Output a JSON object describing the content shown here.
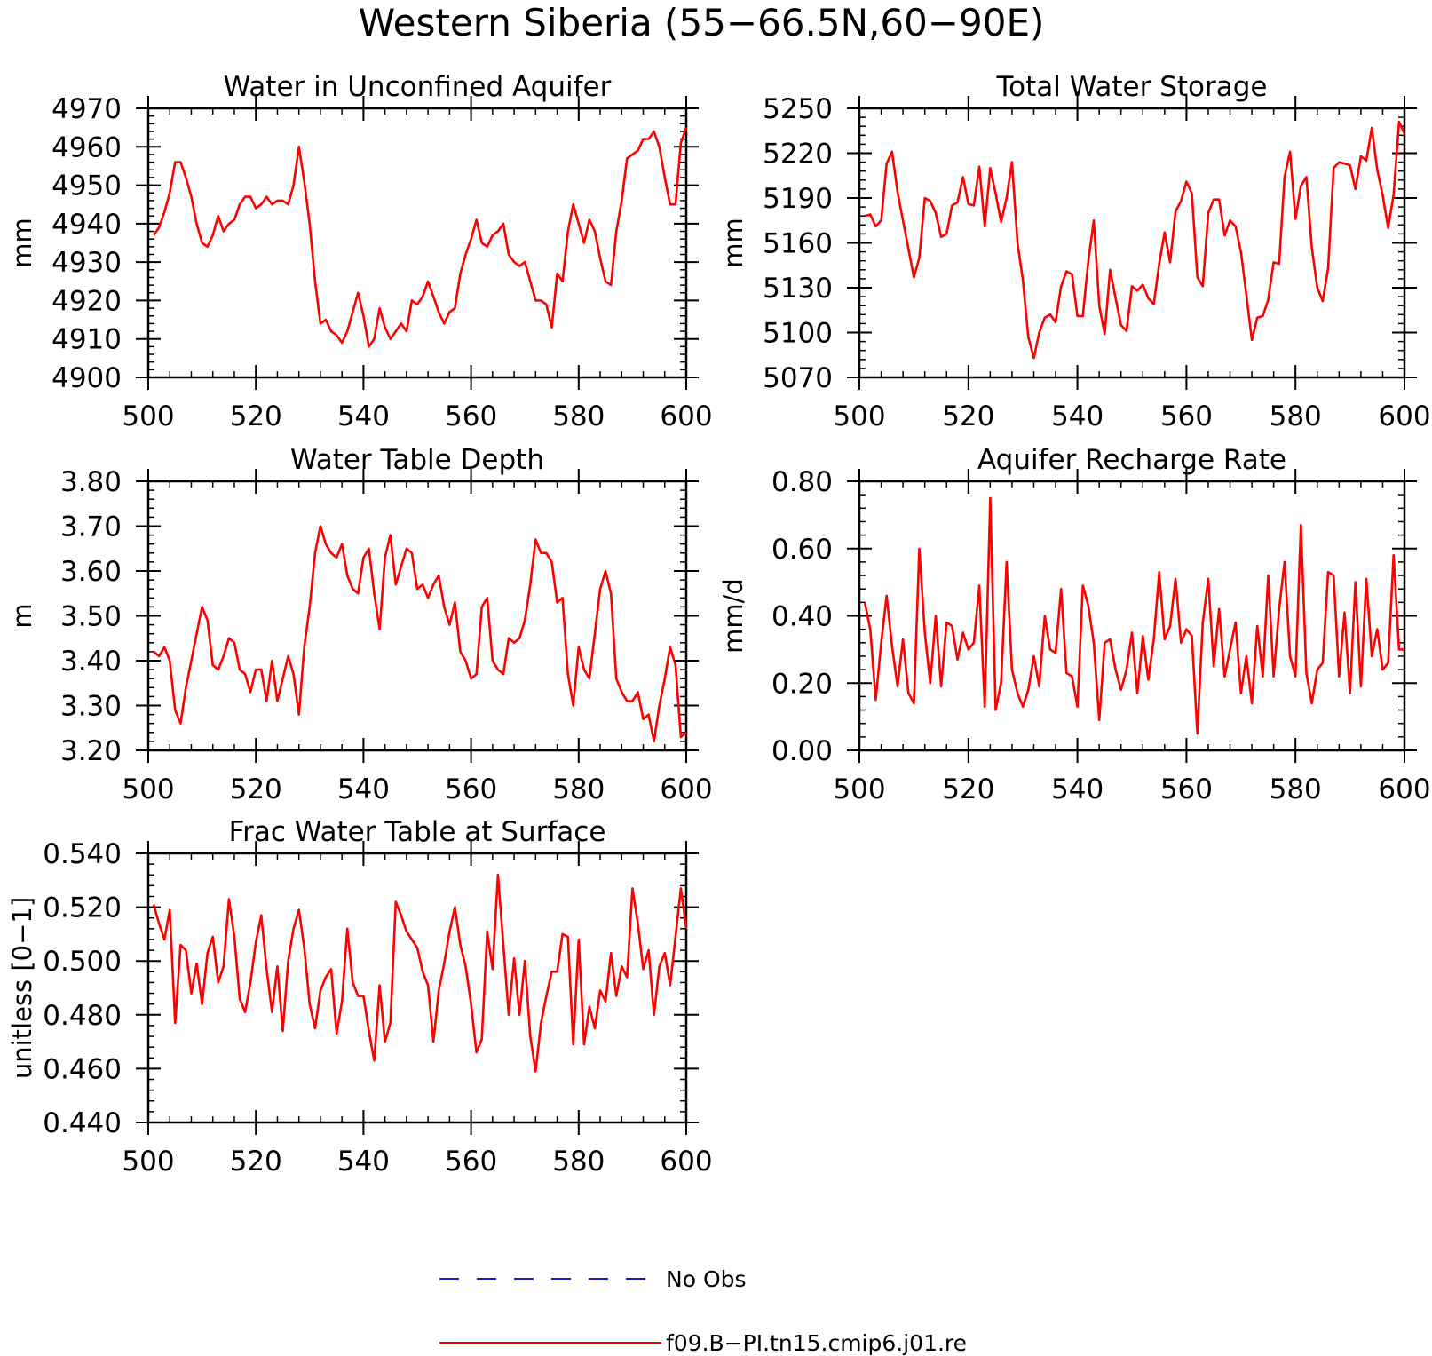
{
  "figure": {
    "title": "Western Siberia (55−66.5N,60−90E)",
    "legend": [
      {
        "label": "No Obs",
        "color": "#1f1fd1",
        "dash": true
      },
      {
        "label": "f09.B−PI.tn15.cmip6.j01.re",
        "color": "#ff0000",
        "dash": false
      }
    ]
  },
  "chart_data": [
    {
      "type": "line",
      "title": "Water in Unconfined Aquifer",
      "ylabel": "mm",
      "xlim": [
        500,
        600
      ],
      "ylim": [
        4900,
        4970
      ],
      "xticks": [
        500,
        520,
        540,
        560,
        580,
        600
      ],
      "xtick_labels": [
        "500",
        "520",
        "540",
        "560",
        "580",
        "600"
      ],
      "yticks": [
        4900,
        4910,
        4920,
        4930,
        4940,
        4950,
        4960,
        4970
      ],
      "ytick_labels": [
        "4900",
        "4910",
        "4920",
        "4930",
        "4940",
        "4950",
        "4960",
        "4970"
      ],
      "series": [
        {
          "color": "#ff0000",
          "x_start": 501,
          "values": [
            4937,
            4939,
            4943,
            4948,
            4956,
            4956,
            4952,
            4947,
            4940,
            4935,
            4934,
            4937,
            4942,
            4938,
            4940,
            4941,
            4945,
            4947,
            4947,
            4944,
            4945,
            4947,
            4945,
            4946,
            4946,
            4945,
            4950,
            4960,
            4951,
            4940,
            4925,
            4914,
            4915,
            4912,
            4911,
            4909,
            4912,
            4917,
            4922,
            4916,
            4908,
            4910,
            4918,
            4913,
            4910,
            4912,
            4914,
            4912,
            4920,
            4919,
            4921,
            4925,
            4921,
            4917,
            4914,
            4917,
            4918,
            4927,
            4932,
            4936,
            4941,
            4935,
            4934,
            4937,
            4938,
            4940,
            4932,
            4930,
            4929,
            4930,
            4925,
            4920,
            4920,
            4919,
            4913,
            4927,
            4925,
            4938,
            4945,
            4940,
            4935,
            4941,
            4938,
            4931,
            4925,
            4924,
            4938,
            4946,
            4957,
            4958,
            4959,
            4962,
            4962,
            4964,
            4960,
            4952,
            4945,
            4945,
            4961,
            4965
          ]
        }
      ]
    },
    {
      "type": "line",
      "title": "Total Water Storage",
      "ylabel": "mm",
      "xlim": [
        500,
        600
      ],
      "ylim": [
        5070,
        5250
      ],
      "xticks": [
        500,
        520,
        540,
        560,
        580,
        600
      ],
      "xtick_labels": [
        "500",
        "520",
        "540",
        "560",
        "580",
        "600"
      ],
      "yticks": [
        5070,
        5100,
        5130,
        5160,
        5190,
        5220,
        5250
      ],
      "ytick_labels": [
        "5070",
        "5100",
        "5130",
        "5160",
        "5190",
        "5220",
        "5250"
      ],
      "series": [
        {
          "color": "#ff0000",
          "x_start": 501,
          "values": [
            5178,
            5179,
            5171,
            5175,
            5213,
            5221,
            5194,
            5175,
            5156,
            5137,
            5150,
            5190,
            5188,
            5180,
            5164,
            5166,
            5185,
            5187,
            5204,
            5186,
            5185,
            5211,
            5171,
            5210,
            5193,
            5174,
            5190,
            5214,
            5160,
            5135,
            5097,
            5083,
            5100,
            5110,
            5112,
            5107,
            5131,
            5141,
            5139,
            5111,
            5111,
            5148,
            5175,
            5118,
            5099,
            5142,
            5123,
            5105,
            5101,
            5131,
            5128,
            5132,
            5123,
            5119,
            5146,
            5167,
            5147,
            5181,
            5188,
            5201,
            5193,
            5137,
            5131,
            5180,
            5189,
            5189,
            5165,
            5175,
            5171,
            5154,
            5125,
            5095,
            5110,
            5111,
            5122,
            5147,
            5146,
            5204,
            5221,
            5176,
            5198,
            5204,
            5157,
            5130,
            5121,
            5143,
            5210,
            5214,
            5213,
            5212,
            5196,
            5218,
            5215,
            5237,
            5209,
            5192,
            5170,
            5192,
            5241,
            5233
          ]
        }
      ]
    },
    {
      "type": "line",
      "title": "Water Table Depth",
      "ylabel": "m",
      "xlim": [
        500,
        600
      ],
      "ylim": [
        3.2,
        3.8
      ],
      "xticks": [
        500,
        520,
        540,
        560,
        580,
        600
      ],
      "xtick_labels": [
        "500",
        "520",
        "540",
        "560",
        "580",
        "600"
      ],
      "yticks": [
        3.2,
        3.3,
        3.4,
        3.5,
        3.6,
        3.7,
        3.8
      ],
      "ytick_labels": [
        "3.20",
        "3.30",
        "3.40",
        "3.50",
        "3.60",
        "3.70",
        "3.80"
      ],
      "series": [
        {
          "color": "#ff0000",
          "x_start": 501,
          "values": [
            3.42,
            3.41,
            3.43,
            3.4,
            3.29,
            3.26,
            3.34,
            3.4,
            3.46,
            3.52,
            3.49,
            3.39,
            3.38,
            3.41,
            3.45,
            3.44,
            3.38,
            3.37,
            3.33,
            3.38,
            3.38,
            3.31,
            3.4,
            3.31,
            3.36,
            3.41,
            3.37,
            3.28,
            3.43,
            3.52,
            3.64,
            3.7,
            3.66,
            3.64,
            3.63,
            3.66,
            3.59,
            3.56,
            3.55,
            3.63,
            3.65,
            3.55,
            3.47,
            3.63,
            3.68,
            3.57,
            3.61,
            3.65,
            3.64,
            3.56,
            3.57,
            3.54,
            3.57,
            3.59,
            3.52,
            3.48,
            3.53,
            3.42,
            3.4,
            3.36,
            3.37,
            3.52,
            3.54,
            3.4,
            3.38,
            3.37,
            3.45,
            3.44,
            3.45,
            3.49,
            3.57,
            3.67,
            3.64,
            3.64,
            3.62,
            3.53,
            3.54,
            3.37,
            3.3,
            3.43,
            3.38,
            3.36,
            3.46,
            3.56,
            3.6,
            3.55,
            3.36,
            3.33,
            3.31,
            3.31,
            3.33,
            3.27,
            3.28,
            3.22,
            3.3,
            3.36,
            3.43,
            3.39,
            3.23,
            3.24
          ]
        }
      ]
    },
    {
      "type": "line",
      "title": "Aquifer Recharge Rate",
      "ylabel": "mm/d",
      "xlim": [
        500,
        600
      ],
      "ylim": [
        0,
        0.8
      ],
      "xticks": [
        500,
        520,
        540,
        560,
        580,
        600
      ],
      "xtick_labels": [
        "500",
        "520",
        "540",
        "560",
        "580",
        "600"
      ],
      "yticks": [
        0,
        0.2,
        0.4,
        0.6,
        0.8
      ],
      "ytick_labels": [
        "0.00",
        "0.20",
        "0.40",
        "0.60",
        "0.80"
      ],
      "series": [
        {
          "color": "#ff0000",
          "x_start": 501,
          "values": [
            0.44,
            0.36,
            0.15,
            0.32,
            0.46,
            0.31,
            0.19,
            0.33,
            0.17,
            0.14,
            0.6,
            0.35,
            0.2,
            0.4,
            0.19,
            0.38,
            0.37,
            0.27,
            0.35,
            0.3,
            0.32,
            0.49,
            0.13,
            0.75,
            0.12,
            0.2,
            0.56,
            0.24,
            0.17,
            0.13,
            0.18,
            0.28,
            0.19,
            0.4,
            0.3,
            0.29,
            0.48,
            0.23,
            0.22,
            0.13,
            0.49,
            0.43,
            0.32,
            0.09,
            0.32,
            0.33,
            0.24,
            0.18,
            0.24,
            0.35,
            0.17,
            0.34,
            0.21,
            0.33,
            0.53,
            0.33,
            0.37,
            0.51,
            0.32,
            0.36,
            0.34,
            0.05,
            0.38,
            0.51,
            0.25,
            0.42,
            0.22,
            0.3,
            0.38,
            0.17,
            0.28,
            0.14,
            0.37,
            0.22,
            0.52,
            0.22,
            0.42,
            0.56,
            0.28,
            0.22,
            0.67,
            0.23,
            0.14,
            0.24,
            0.26,
            0.53,
            0.52,
            0.22,
            0.41,
            0.17,
            0.5,
            0.19,
            0.51,
            0.28,
            0.36,
            0.24,
            0.26,
            0.58,
            0.3,
            0.3
          ]
        }
      ]
    },
    {
      "type": "line",
      "title": "Frac Water Table at Surface",
      "ylabel": "unitless [0−1]",
      "xlim": [
        500,
        600
      ],
      "ylim": [
        0.44,
        0.54
      ],
      "xticks": [
        500,
        520,
        540,
        560,
        580,
        600
      ],
      "xtick_labels": [
        "500",
        "520",
        "540",
        "560",
        "580",
        "600"
      ],
      "yticks": [
        0.44,
        0.46,
        0.48,
        0.5,
        0.52,
        0.54
      ],
      "ytick_labels": [
        "0.440",
        "0.460",
        "0.480",
        "0.500",
        "0.520",
        "0.540"
      ],
      "series": [
        {
          "color": "#ff0000",
          "x_start": 501,
          "values": [
            0.521,
            0.514,
            0.508,
            0.519,
            0.477,
            0.506,
            0.504,
            0.488,
            0.499,
            0.484,
            0.503,
            0.509,
            0.492,
            0.498,
            0.523,
            0.509,
            0.486,
            0.481,
            0.492,
            0.507,
            0.517,
            0.497,
            0.481,
            0.498,
            0.474,
            0.5,
            0.512,
            0.519,
            0.505,
            0.484,
            0.475,
            0.489,
            0.494,
            0.497,
            0.473,
            0.485,
            0.512,
            0.492,
            0.487,
            0.487,
            0.474,
            0.463,
            0.491,
            0.47,
            0.477,
            0.522,
            0.517,
            0.511,
            0.508,
            0.505,
            0.496,
            0.491,
            0.47,
            0.489,
            0.499,
            0.511,
            0.52,
            0.506,
            0.498,
            0.484,
            0.466,
            0.471,
            0.511,
            0.497,
            0.532,
            0.506,
            0.48,
            0.501,
            0.48,
            0.5,
            0.472,
            0.459,
            0.477,
            0.487,
            0.496,
            0.496,
            0.51,
            0.509,
            0.469,
            0.508,
            0.469,
            0.483,
            0.475,
            0.489,
            0.485,
            0.503,
            0.487,
            0.498,
            0.494,
            0.527,
            0.514,
            0.497,
            0.504,
            0.48,
            0.498,
            0.503,
            0.491,
            0.509,
            0.527,
            0.512
          ]
        }
      ]
    }
  ]
}
